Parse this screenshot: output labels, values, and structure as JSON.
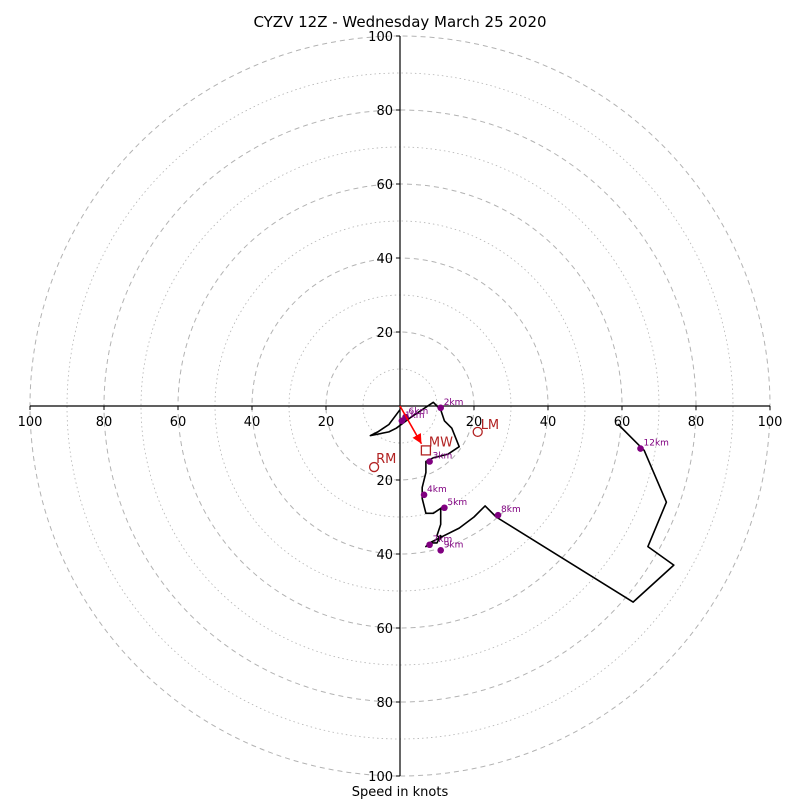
{
  "chart_data": {
    "type": "hodograph",
    "title": "CYZV 12Z - Wednesday March 25 2020",
    "xlabel": "Speed in knots",
    "ylabel": "",
    "xlim": [
      -100,
      100
    ],
    "ylim": [
      -100,
      100
    ],
    "ring_major_step": 20,
    "ring_minor_step": 10,
    "x_tick_labels": [
      "100",
      "80",
      "60",
      "40",
      "20",
      "20",
      "40",
      "60",
      "80",
      "100"
    ],
    "y_tick_labels_top": [
      "100",
      "80",
      "60",
      "40",
      "20"
    ],
    "y_tick_labels_bottom": [
      "20",
      "40",
      "60",
      "80",
      "100"
    ],
    "colors": {
      "hodograph": "#000000",
      "height_markers": "#800080",
      "storm_motion": "#b22222",
      "bunkers_vector": "#ff0000",
      "grid": "#b3b3b3"
    },
    "hodograph_trace": [
      [
        0,
        -1
      ],
      [
        -3,
        -5
      ],
      [
        -6,
        -7
      ],
      [
        -8,
        -8
      ],
      [
        -3,
        -7
      ],
      [
        -1,
        -6
      ],
      [
        3,
        -3
      ],
      [
        6,
        -1
      ],
      [
        9,
        1
      ],
      [
        11,
        -1
      ],
      [
        12,
        -4
      ],
      [
        14,
        -6
      ],
      [
        16,
        -11
      ],
      [
        13,
        -13
      ],
      [
        9,
        -14
      ],
      [
        7,
        -15
      ],
      [
        7,
        -18
      ],
      [
        6,
        -22
      ],
      [
        6,
        -25
      ],
      [
        7,
        -29
      ],
      [
        9,
        -29
      ],
      [
        12,
        -27
      ],
      [
        11,
        -28
      ],
      [
        11,
        -32
      ],
      [
        10,
        -35
      ],
      [
        11,
        -36
      ],
      [
        11,
        -35
      ],
      [
        10,
        -37
      ],
      [
        8,
        -37
      ],
      [
        7,
        -38
      ],
      [
        8,
        -37
      ],
      [
        10,
        -36
      ],
      [
        16,
        -33
      ],
      [
        20,
        -30
      ],
      [
        23,
        -27
      ],
      [
        26,
        -30
      ],
      [
        63,
        -53
      ],
      [
        74,
        -43
      ],
      [
        67,
        -38
      ],
      [
        72,
        -26
      ],
      [
        66,
        -12
      ],
      [
        59,
        -5
      ],
      [
        61,
        -7
      ]
    ],
    "height_markers": [
      {
        "label": "2km",
        "u": 11,
        "v": -0.5
      },
      {
        "label": "3km",
        "u": 8,
        "v": -15
      },
      {
        "label": "4km",
        "u": 6.5,
        "v": -24
      },
      {
        "label": "5km",
        "u": 12,
        "v": -27.5
      },
      {
        "label": "6km",
        "u": 1.5,
        "v": -3
      },
      {
        "label": "1km",
        "u": 0.5,
        "v": -4
      },
      {
        "label": "7km",
        "u": 8,
        "v": -37.5
      },
      {
        "label": "8km",
        "u": 26.5,
        "v": -29.5
      },
      {
        "label": "9km",
        "u": 11,
        "v": -39
      },
      {
        "label": "12km",
        "u": 65,
        "v": -11.5
      }
    ],
    "storm_motion": {
      "RM": {
        "label": "RM",
        "u": -7,
        "v": -16.5
      },
      "LM": {
        "label": "LM",
        "u": 21,
        "v": -7
      },
      "MW": {
        "label": "MW",
        "u": 7,
        "v": -12
      }
    }
  }
}
